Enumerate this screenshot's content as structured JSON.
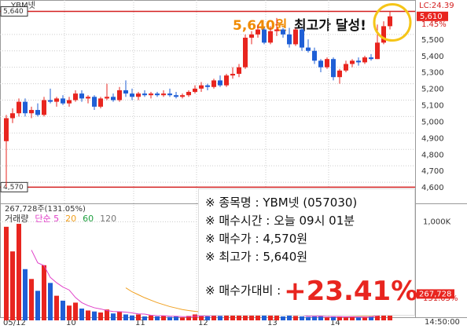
{
  "chart_data": {
    "type": "candlestick",
    "stock_label": "YBM넷",
    "categories": [
      "05/12",
      null,
      null,
      null,
      null,
      null,
      null,
      null,
      null,
      null,
      "10",
      null,
      null,
      null,
      null,
      null,
      null,
      null,
      null,
      null,
      null,
      "11",
      null,
      null,
      null,
      null,
      null,
      null,
      null,
      null,
      null,
      "12",
      null,
      null,
      null,
      null,
      null,
      null,
      null,
      null,
      null,
      null,
      "13",
      null,
      null,
      null,
      null,
      null,
      null,
      null,
      null,
      null,
      "14",
      null,
      null,
      null,
      null,
      null,
      null,
      null,
      null,
      null
    ],
    "last_time": "14:50:00",
    "series": {
      "up_color": "#e8251f",
      "down_color": "#1f5fd6",
      "open": [
        4850,
        4990,
        5020,
        5090,
        5020,
        5040,
        5010,
        5100,
        5090,
        5110,
        5080,
        5100,
        5140,
        5110,
        5120,
        5060,
        5110,
        5120,
        5100,
        5160,
        5140,
        5120,
        5140,
        5130,
        5140,
        5130,
        5140,
        5130,
        5120,
        5130,
        5150,
        5170,
        5190,
        5180,
        5220,
        5190,
        5250,
        5260,
        5300,
        5480,
        5500,
        5530,
        5450,
        5520,
        5530,
        5500,
        5440,
        5530,
        5420,
        5400,
        5340,
        5300,
        5350,
        5240,
        5280,
        5320,
        5340,
        5330,
        5360,
        5350,
        5450,
        5550
      ],
      "high": [
        5010,
        5050,
        5110,
        5110,
        5060,
        5080,
        5120,
        5170,
        5120,
        5130,
        5120,
        5160,
        5160,
        5130,
        5130,
        5120,
        5200,
        5140,
        5180,
        5220,
        5170,
        5150,
        5160,
        5150,
        5150,
        5160,
        5170,
        5150,
        5140,
        5160,
        5190,
        5210,
        5200,
        5230,
        5250,
        5260,
        5300,
        5320,
        5500,
        5520,
        5560,
        5540,
        5550,
        5600,
        5540,
        5540,
        5540,
        5540,
        5470,
        5420,
        5350,
        5360,
        5360,
        5290,
        5340,
        5350,
        5360,
        5370,
        5380,
        5560,
        5580,
        5640
      ],
      "low": [
        4570,
        4960,
        5000,
        5000,
        4990,
        5000,
        5000,
        5080,
        5060,
        5070,
        5060,
        5090,
        5090,
        5080,
        5040,
        5050,
        5100,
        5090,
        5090,
        5120,
        5100,
        5100,
        5120,
        5110,
        5120,
        5120,
        5120,
        5110,
        5110,
        5120,
        5140,
        5150,
        5160,
        5170,
        5180,
        5180,
        5230,
        5240,
        5290,
        5440,
        5480,
        5440,
        5440,
        5490,
        5480,
        5420,
        5430,
        5400,
        5390,
        5320,
        5270,
        5290,
        5220,
        5200,
        5270,
        5300,
        5310,
        5320,
        5340,
        5350,
        5440,
        5530
      ],
      "close": [
        4990,
        5020,
        5090,
        5020,
        5040,
        5010,
        5100,
        5090,
        5110,
        5080,
        5100,
        5140,
        5110,
        5120,
        5060,
        5110,
        5120,
        5100,
        5160,
        5140,
        5120,
        5140,
        5130,
        5140,
        5130,
        5140,
        5130,
        5120,
        5130,
        5150,
        5170,
        5190,
        5180,
        5220,
        5190,
        5250,
        5260,
        5300,
        5480,
        5500,
        5530,
        5450,
        5520,
        5530,
        5500,
        5440,
        5530,
        5420,
        5400,
        5340,
        5300,
        5350,
        5240,
        5280,
        5320,
        5340,
        5330,
        5360,
        5350,
        5450,
        5550,
        5610
      ]
    },
    "ylim": [
      4500,
      5700
    ],
    "yticks": [
      {
        "value": 4600,
        "label": "4,600"
      },
      {
        "value": 4700,
        "label": "4,700"
      },
      {
        "value": 4800,
        "label": "4,800"
      },
      {
        "value": 4900,
        "label": "4,900"
      },
      {
        "value": 5000,
        "label": "5,000"
      },
      {
        "value": 5100,
        "label": "5,100"
      },
      {
        "value": 5200,
        "label": "5,200"
      },
      {
        "value": 5300,
        "label": "5,300"
      },
      {
        "value": 5400,
        "label": "5,400"
      },
      {
        "value": 5500,
        "label": "5,500"
      }
    ],
    "grid": true,
    "reference_lines": [
      {
        "value": 5640,
        "label": "5,640"
      },
      {
        "value": 4570,
        "label": "4,570"
      }
    ],
    "reference_color": "#d42020",
    "lc_label": "LC:24.39",
    "last_label": "5,610",
    "last_change": "1.45%",
    "annotation": {
      "price": "5,640원",
      "text": "최고가 달성!"
    },
    "volume": {
      "title": "267,728주(131.05%)",
      "values": [
        950000,
        700000,
        980000,
        520000,
        420000,
        300000,
        560000,
        380000,
        250000,
        200000,
        150000,
        180000,
        120000,
        100000,
        90000,
        80000,
        110000,
        70000,
        90000,
        60000,
        50000,
        60000,
        40000,
        50000,
        40000,
        45000,
        35000,
        40000,
        30000,
        45000,
        60000,
        50000,
        40000,
        55000,
        45000,
        70000,
        60000,
        80000,
        150000,
        90000,
        70000,
        60000,
        80000,
        50000,
        40000,
        50000,
        45000,
        40000,
        35000,
        40000,
        45000,
        30000,
        40000,
        35000,
        30000,
        40000,
        30000,
        35000,
        40000,
        90000,
        120000,
        267728
      ],
      "ylim": [
        0,
        1100000
      ],
      "yticks": [
        {
          "value": 1000000,
          "label": "1,000K"
        }
      ],
      "last_label": "267,728",
      "last_ratio": "131.05%",
      "legend": [
        {
          "name": "거래량",
          "color": "#333333"
        },
        {
          "name": "단순 5",
          "color": "#e040c8"
        },
        {
          "name": "20",
          "color": "#f0a020"
        },
        {
          "name": "60",
          "color": "#20a040"
        },
        {
          "name": "120",
          "color": "#777777"
        }
      ],
      "ma": [
        {
          "name": "단순 5",
          "color": "#e040c8",
          "values": [
            null,
            null,
            null,
            null,
            714000,
            584000,
            556000,
            436000,
            382000,
            338000,
            308000,
            232000,
            180000,
            150000,
            128000,
            116000,
            100000,
            90000,
            88000,
            84000,
            76000,
            66000,
            64000,
            52000,
            48000,
            47000,
            43000,
            42000,
            38000,
            39000,
            42000,
            45000,
            45000,
            50000,
            50000,
            54000,
            56000,
            62000,
            81000,
            90000,
            90000,
            90000,
            86000,
            70000,
            60000,
            56000,
            53000,
            53000,
            42000,
            42000,
            43000,
            38000,
            38000,
            38000,
            36000,
            36000,
            35000,
            34000,
            35000,
            47000,
            63000,
            110000
          ]
        },
        {
          "name": "20",
          "color": "#f0a020",
          "values": [
            null,
            null,
            null,
            null,
            null,
            null,
            null,
            null,
            null,
            null,
            null,
            null,
            null,
            null,
            null,
            null,
            null,
            null,
            null,
            330000,
            290000,
            260000,
            230000,
            205000,
            180000,
            160000,
            140000,
            125000,
            110000,
            100000,
            92000,
            85000,
            78000,
            72000,
            68000,
            65000,
            63000,
            62000,
            65000,
            67000,
            68000,
            68000,
            69000,
            68000,
            67000,
            66000,
            65000,
            64000,
            64000,
            62000,
            60000,
            58000,
            55000,
            53000,
            52000,
            50000,
            48000,
            47000,
            48000,
            51000,
            55000,
            64000
          ]
        }
      ]
    }
  },
  "info": {
    "lines": [
      "※ 종목명 : YBM넷 (057030)",
      "※ 매수시간 : 오늘 09시 01분",
      "※ 매수가 : 4,570원",
      "※ 최고가 : 5,640원"
    ],
    "return_label": "※ 매수가대비 :",
    "return_value": "+23.41%"
  }
}
